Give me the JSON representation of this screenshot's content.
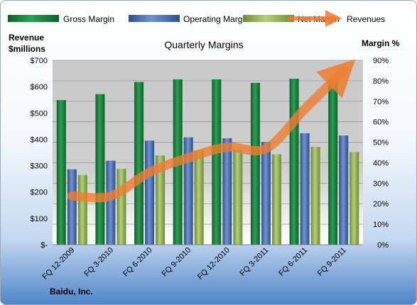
{
  "chart_data": {
    "type": "bar",
    "title": "Quarterly Margins",
    "categories": [
      "FQ 12-2009",
      "FQ 3-2010",
      "FQ 6-2010",
      "FQ 9-2010",
      "FQ 12-2010",
      "FQ 3-2011",
      "FQ 6-2011",
      "FQ 9-2011"
    ],
    "series": [
      {
        "name": "Gross Margin",
        "axis": "right",
        "type": "bar",
        "color": "#1f8a44",
        "values": [
          70.6,
          73.5,
          79.4,
          80.7,
          80.7,
          79.0,
          81.0,
          80.6
        ]
      },
      {
        "name": "Operating Margin",
        "axis": "right",
        "type": "bar",
        "color": "#4a72b8",
        "values": [
          36.8,
          41.0,
          50.8,
          52.4,
          51.9,
          50.1,
          54.4,
          53.3
        ]
      },
      {
        "name": "Net Margin",
        "axis": "right",
        "type": "bar",
        "color": "#9bbb59",
        "values": [
          34.0,
          37.0,
          43.6,
          46.0,
          46.5,
          44.1,
          47.7,
          45.2
        ]
      },
      {
        "name": "Revenues",
        "axis": "left",
        "type": "line",
        "color": "#ed7d31",
        "values": [
          185,
          185,
          275,
          330,
          370,
          365,
          515,
          660
        ]
      }
    ],
    "left_axis": {
      "title_line1": "Revenue",
      "title_line2": "$millions",
      "ticks": [
        "$-",
        "$100",
        "$200",
        "$300",
        "$400",
        "$500",
        "$600",
        "$700"
      ],
      "min": 0,
      "max": 700
    },
    "right_axis": {
      "title": "Margin %",
      "ticks": [
        "0%",
        "10%",
        "20%",
        "30%",
        "40%",
        "50%",
        "60%",
        "70%",
        "80%",
        "90%"
      ],
      "min": 0,
      "max": 90
    },
    "legend_position": "top",
    "grid": true
  },
  "footer": {
    "company": "Baidu, Inc."
  }
}
